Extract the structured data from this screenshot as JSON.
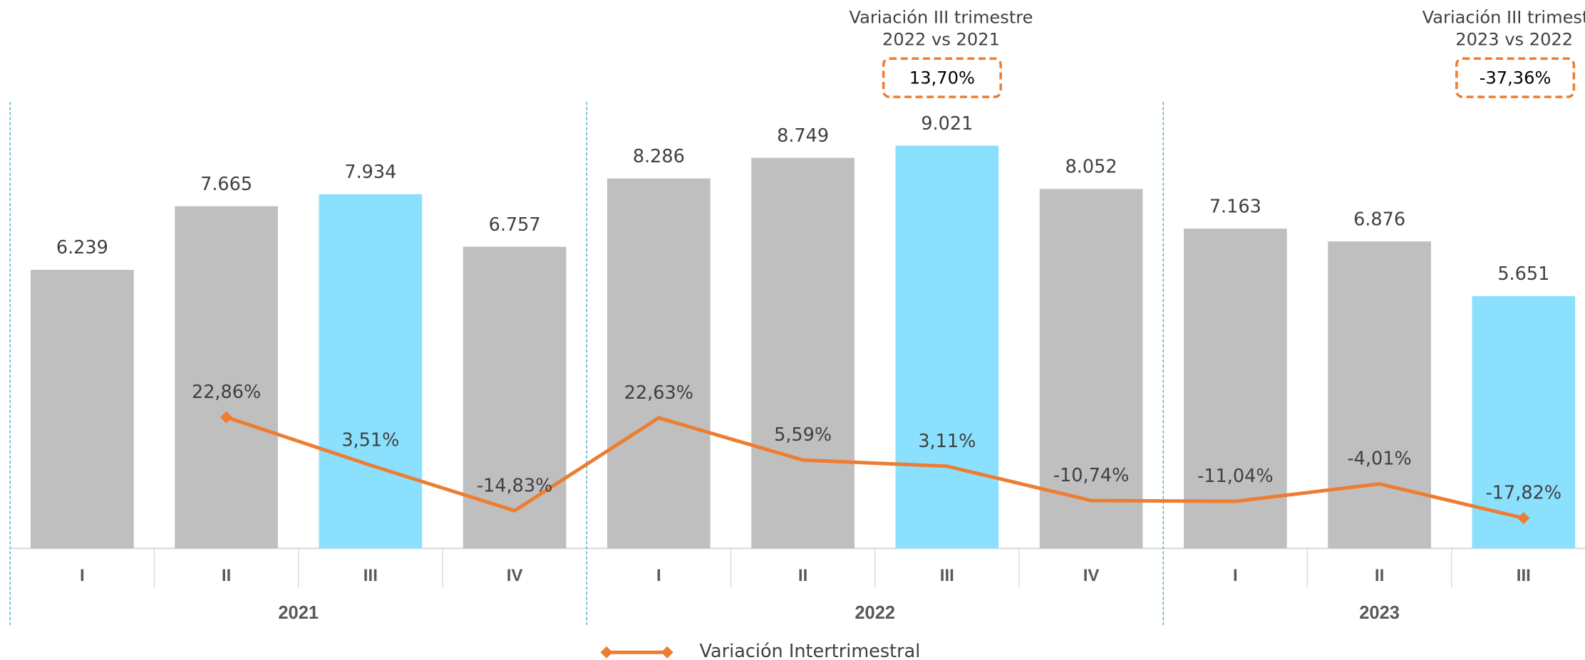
{
  "chart_data": {
    "type": "bar",
    "groups": [
      {
        "label": "2021",
        "categories": [
          "I",
          "II",
          "III",
          "IV"
        ]
      },
      {
        "label": "2022",
        "categories": [
          "I",
          "II",
          "III",
          "IV"
        ]
      },
      {
        "label": "2023",
        "categories": [
          "I",
          "II",
          "III"
        ]
      }
    ],
    "series": [
      {
        "type": "bar",
        "colors": [
          "#bfbfbf",
          "#bfbfbf",
          "#8ae0fd",
          "#bfbfbf",
          "#bfbfbf",
          "#bfbfbf",
          "#8ae0fd",
          "#bfbfbf",
          "#bfbfbf",
          "#bfbfbf",
          "#8ae0fd"
        ],
        "values": [
          6239,
          7665,
          7934,
          6757,
          8286,
          8749,
          9021,
          8052,
          7163,
          6876,
          5651
        ],
        "value_labels": [
          "6.239",
          "7.665",
          "7.934",
          "6.757",
          "8.286",
          "8.749",
          "9.021",
          "8.052",
          "7.163",
          "6.876",
          "5.651"
        ]
      },
      {
        "type": "line",
        "name": "Variación Intertrimestral",
        "axis": "y2",
        "color": "#ed7d31",
        "values": [
          null,
          22.86,
          3.51,
          -14.83,
          22.63,
          5.59,
          3.11,
          -10.74,
          -11.04,
          -4.01,
          -17.82
        ],
        "value_labels": [
          null,
          "22,86%",
          "3,51%",
          "-14,83%",
          "22,63%",
          "5,59%",
          "3,11%",
          "-10,74%",
          "-11,04%",
          "-4,01%",
          "-17,82%"
        ]
      }
    ],
    "ylim": [
      0,
      10000
    ],
    "y2lim": [
      -30,
      150
    ],
    "annotations": [
      {
        "title": "Variación III trimestre",
        "subtitle": "2022 vs 2021",
        "value_label": "13,70%",
        "value": 13.7
      },
      {
        "title": "Variación III trimestre",
        "subtitle": "2023 vs 2022",
        "value_label": "-37,36%",
        "value": -37.36
      }
    ],
    "legend": "bottom"
  }
}
